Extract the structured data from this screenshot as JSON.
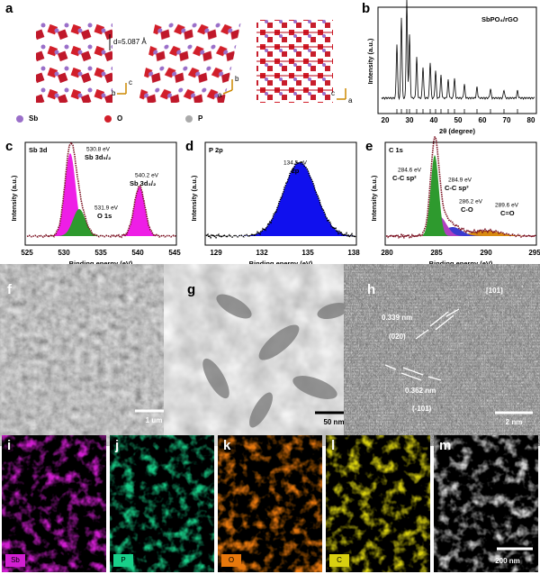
{
  "panels": {
    "a": {
      "letter": "a",
      "annotation": "d=5.087 Å",
      "legend": [
        "Sb",
        "O",
        "P"
      ],
      "axes": [
        [
          "b",
          "c"
        ],
        [
          "a",
          "b"
        ],
        [
          "c",
          "a"
        ]
      ]
    },
    "b": {
      "letter": "b",
      "title": "SbPO₄/rGO",
      "ylabel": "Intensity (a.u.)",
      "xlabel": "2θ (degree)",
      "xticks": [
        "20",
        "30",
        "40",
        "50",
        "60",
        "70",
        "80"
      ]
    },
    "c": {
      "letter": "c",
      "title": "Sb 3d",
      "ylabel": "Intensity (a.u.)",
      "xlabel": "Binding energy (eV)",
      "peaks": [
        [
          "530.8 eV",
          "Sb 3d₅/₂"
        ],
        [
          "531.9 eV",
          "O 1s"
        ],
        [
          "540.2 eV",
          "Sb 3d₃/₂"
        ]
      ],
      "xticks": [
        "525",
        "530",
        "535",
        "540",
        "545"
      ]
    },
    "d": {
      "letter": "d",
      "title": "P 2p",
      "ylabel": "Intensity (a.u.)",
      "xlabel": "Binding energy (eV)",
      "peaks": [
        [
          "134.5 eV",
          "2p"
        ]
      ],
      "xticks": [
        "129",
        "132",
        "135",
        "138"
      ]
    },
    "e": {
      "letter": "e",
      "title": "C 1s",
      "ylabel": "Intensity (a.u.)",
      "xlabel": "Binding energy (eV)",
      "peaks": [
        [
          "284.6 eV",
          "C-C sp²"
        ],
        [
          "284.9 eV",
          "C-C sp³"
        ],
        [
          "286.2 eV",
          "C-O"
        ],
        [
          "289.6 eV",
          "C=O"
        ]
      ],
      "xticks": [
        "280",
        "285",
        "290",
        "295"
      ]
    },
    "f": {
      "letter": "f",
      "scale": "1 um"
    },
    "g": {
      "letter": "g",
      "scale": "50 nm"
    },
    "h": {
      "letter": "h",
      "zone": "[101]",
      "d1": "0.339 nm",
      "plane1": "(020)",
      "d2": "0.362 nm",
      "plane2": "(-101)",
      "scale": "2 nm"
    },
    "i": {
      "letter": "i",
      "element": "Sb"
    },
    "j": {
      "letter": "j",
      "element": "P"
    },
    "k": {
      "letter": "k",
      "element": "O"
    },
    "l": {
      "letter": "l",
      "element": "C"
    },
    "m": {
      "letter": "m",
      "scale": "200 nm"
    }
  }
}
